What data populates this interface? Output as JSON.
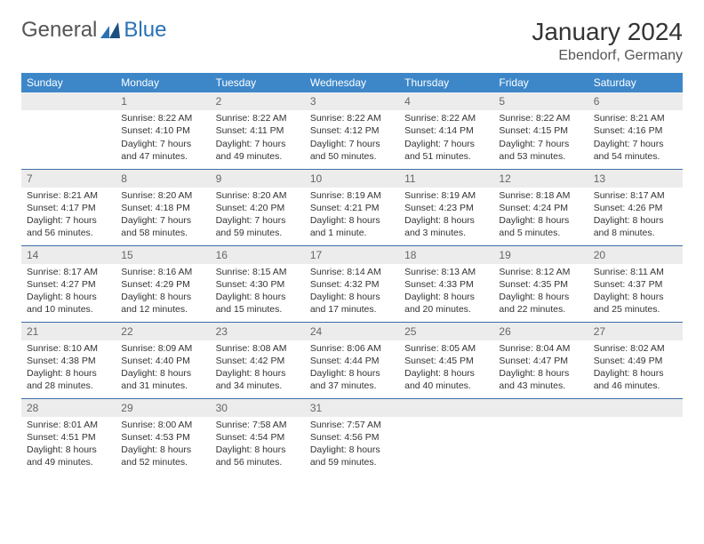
{
  "brand": {
    "general": "General",
    "blue": "Blue"
  },
  "title": "January 2024",
  "location": "Ebendorf, Germany",
  "colors": {
    "header_bg": "#3d87c9",
    "header_text": "#ffffff",
    "daynum_bg": "#ececec",
    "border": "#3d6fa5",
    "brand_blue": "#2a72b5"
  },
  "weekdays": [
    "Sunday",
    "Monday",
    "Tuesday",
    "Wednesday",
    "Thursday",
    "Friday",
    "Saturday"
  ],
  "weeks": [
    [
      {
        "n": "",
        "r": "",
        "s": "",
        "d1": "",
        "d2": ""
      },
      {
        "n": "1",
        "r": "Sunrise: 8:22 AM",
        "s": "Sunset: 4:10 PM",
        "d1": "Daylight: 7 hours",
        "d2": "and 47 minutes."
      },
      {
        "n": "2",
        "r": "Sunrise: 8:22 AM",
        "s": "Sunset: 4:11 PM",
        "d1": "Daylight: 7 hours",
        "d2": "and 49 minutes."
      },
      {
        "n": "3",
        "r": "Sunrise: 8:22 AM",
        "s": "Sunset: 4:12 PM",
        "d1": "Daylight: 7 hours",
        "d2": "and 50 minutes."
      },
      {
        "n": "4",
        "r": "Sunrise: 8:22 AM",
        "s": "Sunset: 4:14 PM",
        "d1": "Daylight: 7 hours",
        "d2": "and 51 minutes."
      },
      {
        "n": "5",
        "r": "Sunrise: 8:22 AM",
        "s": "Sunset: 4:15 PM",
        "d1": "Daylight: 7 hours",
        "d2": "and 53 minutes."
      },
      {
        "n": "6",
        "r": "Sunrise: 8:21 AM",
        "s": "Sunset: 4:16 PM",
        "d1": "Daylight: 7 hours",
        "d2": "and 54 minutes."
      }
    ],
    [
      {
        "n": "7",
        "r": "Sunrise: 8:21 AM",
        "s": "Sunset: 4:17 PM",
        "d1": "Daylight: 7 hours",
        "d2": "and 56 minutes."
      },
      {
        "n": "8",
        "r": "Sunrise: 8:20 AM",
        "s": "Sunset: 4:18 PM",
        "d1": "Daylight: 7 hours",
        "d2": "and 58 minutes."
      },
      {
        "n": "9",
        "r": "Sunrise: 8:20 AM",
        "s": "Sunset: 4:20 PM",
        "d1": "Daylight: 7 hours",
        "d2": "and 59 minutes."
      },
      {
        "n": "10",
        "r": "Sunrise: 8:19 AM",
        "s": "Sunset: 4:21 PM",
        "d1": "Daylight: 8 hours",
        "d2": "and 1 minute."
      },
      {
        "n": "11",
        "r": "Sunrise: 8:19 AM",
        "s": "Sunset: 4:23 PM",
        "d1": "Daylight: 8 hours",
        "d2": "and 3 minutes."
      },
      {
        "n": "12",
        "r": "Sunrise: 8:18 AM",
        "s": "Sunset: 4:24 PM",
        "d1": "Daylight: 8 hours",
        "d2": "and 5 minutes."
      },
      {
        "n": "13",
        "r": "Sunrise: 8:17 AM",
        "s": "Sunset: 4:26 PM",
        "d1": "Daylight: 8 hours",
        "d2": "and 8 minutes."
      }
    ],
    [
      {
        "n": "14",
        "r": "Sunrise: 8:17 AM",
        "s": "Sunset: 4:27 PM",
        "d1": "Daylight: 8 hours",
        "d2": "and 10 minutes."
      },
      {
        "n": "15",
        "r": "Sunrise: 8:16 AM",
        "s": "Sunset: 4:29 PM",
        "d1": "Daylight: 8 hours",
        "d2": "and 12 minutes."
      },
      {
        "n": "16",
        "r": "Sunrise: 8:15 AM",
        "s": "Sunset: 4:30 PM",
        "d1": "Daylight: 8 hours",
        "d2": "and 15 minutes."
      },
      {
        "n": "17",
        "r": "Sunrise: 8:14 AM",
        "s": "Sunset: 4:32 PM",
        "d1": "Daylight: 8 hours",
        "d2": "and 17 minutes."
      },
      {
        "n": "18",
        "r": "Sunrise: 8:13 AM",
        "s": "Sunset: 4:33 PM",
        "d1": "Daylight: 8 hours",
        "d2": "and 20 minutes."
      },
      {
        "n": "19",
        "r": "Sunrise: 8:12 AM",
        "s": "Sunset: 4:35 PM",
        "d1": "Daylight: 8 hours",
        "d2": "and 22 minutes."
      },
      {
        "n": "20",
        "r": "Sunrise: 8:11 AM",
        "s": "Sunset: 4:37 PM",
        "d1": "Daylight: 8 hours",
        "d2": "and 25 minutes."
      }
    ],
    [
      {
        "n": "21",
        "r": "Sunrise: 8:10 AM",
        "s": "Sunset: 4:38 PM",
        "d1": "Daylight: 8 hours",
        "d2": "and 28 minutes."
      },
      {
        "n": "22",
        "r": "Sunrise: 8:09 AM",
        "s": "Sunset: 4:40 PM",
        "d1": "Daylight: 8 hours",
        "d2": "and 31 minutes."
      },
      {
        "n": "23",
        "r": "Sunrise: 8:08 AM",
        "s": "Sunset: 4:42 PM",
        "d1": "Daylight: 8 hours",
        "d2": "and 34 minutes."
      },
      {
        "n": "24",
        "r": "Sunrise: 8:06 AM",
        "s": "Sunset: 4:44 PM",
        "d1": "Daylight: 8 hours",
        "d2": "and 37 minutes."
      },
      {
        "n": "25",
        "r": "Sunrise: 8:05 AM",
        "s": "Sunset: 4:45 PM",
        "d1": "Daylight: 8 hours",
        "d2": "and 40 minutes."
      },
      {
        "n": "26",
        "r": "Sunrise: 8:04 AM",
        "s": "Sunset: 4:47 PM",
        "d1": "Daylight: 8 hours",
        "d2": "and 43 minutes."
      },
      {
        "n": "27",
        "r": "Sunrise: 8:02 AM",
        "s": "Sunset: 4:49 PM",
        "d1": "Daylight: 8 hours",
        "d2": "and 46 minutes."
      }
    ],
    [
      {
        "n": "28",
        "r": "Sunrise: 8:01 AM",
        "s": "Sunset: 4:51 PM",
        "d1": "Daylight: 8 hours",
        "d2": "and 49 minutes."
      },
      {
        "n": "29",
        "r": "Sunrise: 8:00 AM",
        "s": "Sunset: 4:53 PM",
        "d1": "Daylight: 8 hours",
        "d2": "and 52 minutes."
      },
      {
        "n": "30",
        "r": "Sunrise: 7:58 AM",
        "s": "Sunset: 4:54 PM",
        "d1": "Daylight: 8 hours",
        "d2": "and 56 minutes."
      },
      {
        "n": "31",
        "r": "Sunrise: 7:57 AM",
        "s": "Sunset: 4:56 PM",
        "d1": "Daylight: 8 hours",
        "d2": "and 59 minutes."
      },
      {
        "n": "",
        "r": "",
        "s": "",
        "d1": "",
        "d2": ""
      },
      {
        "n": "",
        "r": "",
        "s": "",
        "d1": "",
        "d2": ""
      },
      {
        "n": "",
        "r": "",
        "s": "",
        "d1": "",
        "d2": ""
      }
    ]
  ]
}
